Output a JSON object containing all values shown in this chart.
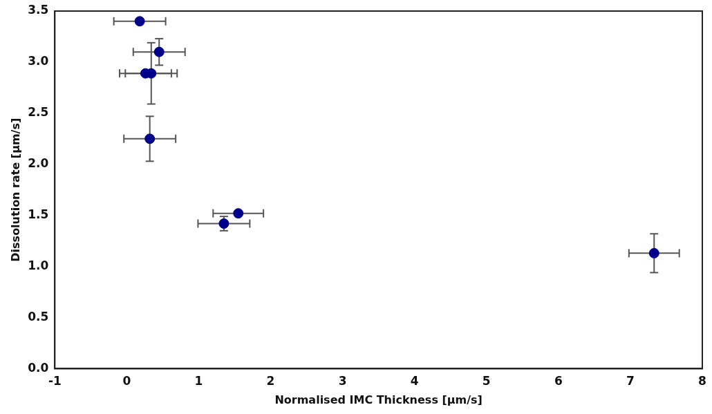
{
  "chart_data": {
    "type": "scatter",
    "xlabel": "Normalised IMC Thickness [µm/s]",
    "ylabel": "Dissolution rate [µm/s]",
    "x": [
      0.18,
      0.45,
      0.26,
      0.34,
      0.32,
      1.55,
      1.35,
      7.33
    ],
    "series": [
      {
        "color": "#00008b",
        "values": [
          3.4,
          3.1,
          2.89,
          2.89,
          2.25,
          1.52,
          1.42,
          1.13
        ],
        "errors": [
          null,
          0.13,
          null,
          0.3,
          0.22,
          null,
          0.07,
          0.19
        ],
        "xerrors": [
          0.36,
          0.36,
          0.36,
          0.36,
          0.36,
          0.35,
          0.36,
          0.35
        ]
      }
    ],
    "xlim": [
      -1,
      8
    ],
    "xticks": [
      -1,
      0,
      1,
      2,
      3,
      4,
      5,
      6,
      7,
      8
    ],
    "ylim": [
      0,
      3.5
    ],
    "yticks": [
      {
        "value": 0,
        "label": "0.0"
      },
      {
        "value": 0.5,
        "label": "0.5"
      },
      {
        "value": 1,
        "label": "1.0"
      },
      {
        "value": 1.5,
        "label": "1.5"
      },
      {
        "value": 2,
        "label": "2.0"
      },
      {
        "value": 2.5,
        "label": "2.5"
      },
      {
        "value": 3,
        "label": "3.0"
      },
      {
        "value": 3.5,
        "label": "3.5"
      }
    ],
    "grid": false,
    "legend": false,
    "marker": "circle"
  }
}
